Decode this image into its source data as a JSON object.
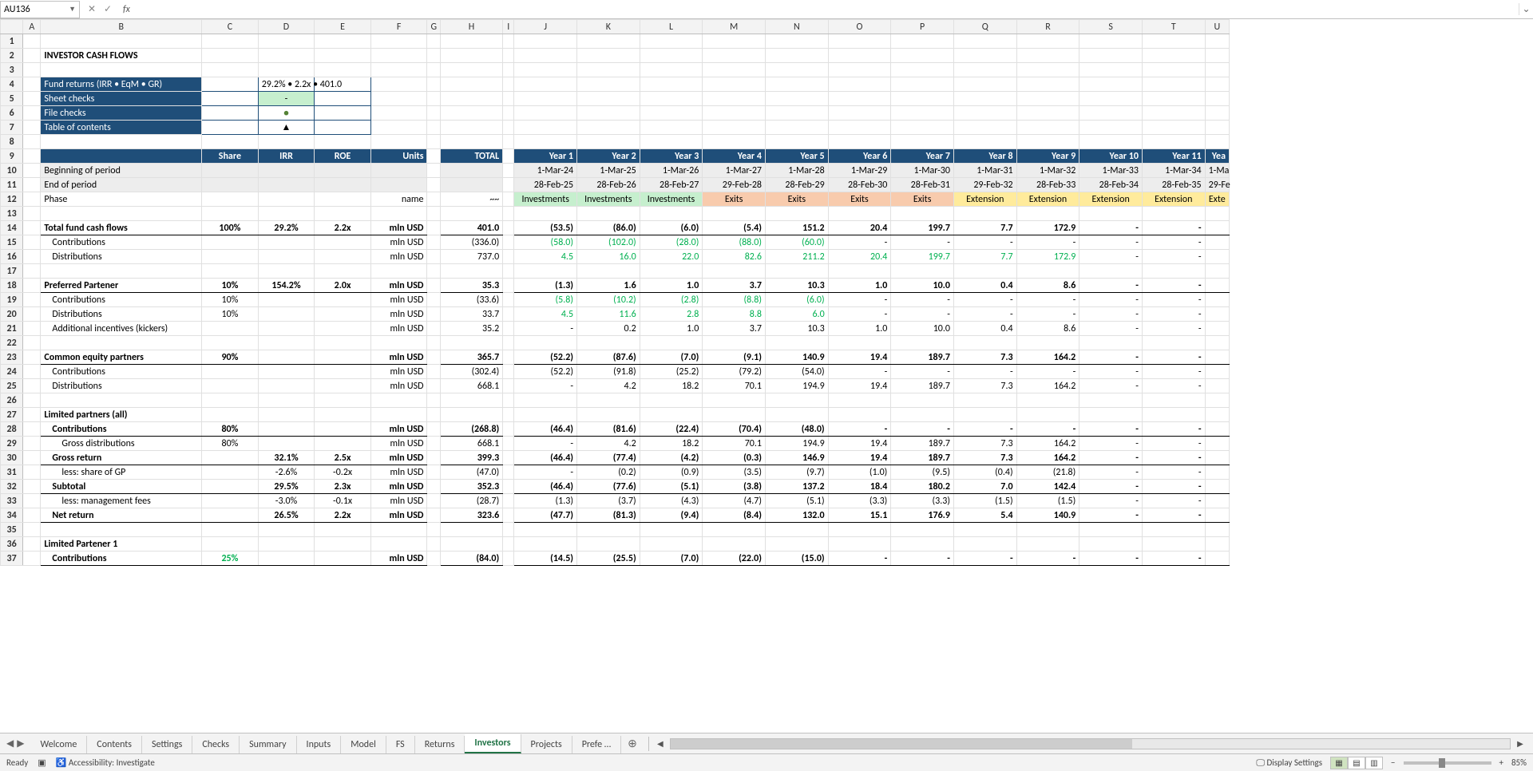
{
  "formula_bar": {
    "name_box": "AU136",
    "fx": "fx",
    "formula": ""
  },
  "columns": [
    "A",
    "B",
    "C",
    "D",
    "E",
    "F",
    "G",
    "H",
    "I",
    "J",
    "K",
    "L",
    "M",
    "N",
    "O",
    "P",
    "Q",
    "R",
    "S",
    "T",
    "U"
  ],
  "title": "INVESTOR CASH FLOWS",
  "info_box": {
    "rows": [
      {
        "label": "Fund returns (IRR • EqM • GR)",
        "val": "29.2% • 2.2x • 401.0"
      },
      {
        "label": "Sheet checks",
        "val": "-"
      },
      {
        "label": "File checks",
        "val": "●"
      },
      {
        "label": "Table of contents",
        "val": "▲"
      }
    ]
  },
  "header_row": {
    "share": "Share",
    "irr": "IRR",
    "roe": "ROE",
    "units": "Units",
    "total": "TOTAL",
    "years": [
      "Year 1",
      "Year 2",
      "Year 3",
      "Year 4",
      "Year 5",
      "Year 6",
      "Year 7",
      "Year 8",
      "Year 9",
      "Year 10",
      "Year 11",
      "Yea"
    ]
  },
  "period_rows": {
    "bop_label": "Beginning of period",
    "eop_label": "End of period",
    "bop": [
      "1-Mar-24",
      "1-Mar-25",
      "1-Mar-26",
      "1-Mar-27",
      "1-Mar-28",
      "1-Mar-29",
      "1-Mar-30",
      "1-Mar-31",
      "1-Mar-32",
      "1-Mar-33",
      "1-Mar-34",
      "1-Ma"
    ],
    "eop": [
      "28-Feb-25",
      "28-Feb-26",
      "28-Feb-27",
      "29-Feb-28",
      "28-Feb-29",
      "28-Feb-30",
      "28-Feb-31",
      "29-Feb-32",
      "28-Feb-33",
      "28-Feb-34",
      "28-Feb-35",
      "29-Fe"
    ]
  },
  "phase_row": {
    "label": "Phase",
    "units": "name",
    "total": "~~",
    "phases": [
      "Investments",
      "Investments",
      "Investments",
      "Exits",
      "Exits",
      "Exits",
      "Exits",
      "Extension",
      "Extension",
      "Extension",
      "Extension",
      "Exte"
    ],
    "phase_class": [
      "phase-inv",
      "phase-inv",
      "phase-inv",
      "phase-exit",
      "phase-exit",
      "phase-exit",
      "phase-exit",
      "phase-ext",
      "phase-ext",
      "phase-ext",
      "phase-ext",
      "phase-ext"
    ]
  },
  "sections": [
    {
      "row": 14,
      "b": "Total fund cash flows",
      "c": "100%",
      "d": "29.2%",
      "e": "2.2x",
      "f": "mln USD",
      "h": "401.0",
      "bold": true,
      "bb": true,
      "y": [
        "(53.5)",
        "(86.0)",
        "(6.0)",
        "(5.4)",
        "151.2",
        "20.4",
        "199.7",
        "7.7",
        "172.9",
        "-",
        "-",
        ""
      ]
    },
    {
      "row": 15,
      "b": "Contributions",
      "indent": 1,
      "f": "mln USD",
      "h": "(336.0)",
      "y": [
        "(58.0)",
        "(102.0)",
        "(28.0)",
        "(88.0)",
        "(60.0)",
        "-",
        "-",
        "-",
        "-",
        "-",
        "-",
        ""
      ],
      "green": true
    },
    {
      "row": 16,
      "b": "Distributions",
      "indent": 1,
      "f": "mln USD",
      "h": "737.0",
      "y": [
        "4.5",
        "16.0",
        "22.0",
        "82.6",
        "211.2",
        "20.4",
        "199.7",
        "7.7",
        "172.9",
        "-",
        "-",
        ""
      ],
      "green": true
    },
    {
      "row": 17,
      "blank": true
    },
    {
      "row": 18,
      "b": "Preferred Partener",
      "c": "10%",
      "d": "154.2%",
      "e": "2.0x",
      "f": "mln USD",
      "h": "35.3",
      "bold": true,
      "bb": true,
      "y": [
        "(1.3)",
        "1.6",
        "1.0",
        "3.7",
        "10.3",
        "1.0",
        "10.0",
        "0.4",
        "8.6",
        "-",
        "-",
        ""
      ]
    },
    {
      "row": 19,
      "b": "Contributions",
      "indent": 1,
      "c": "10%",
      "f": "mln USD",
      "h": "(33.6)",
      "y": [
        "(5.8)",
        "(10.2)",
        "(2.8)",
        "(8.8)",
        "(6.0)",
        "-",
        "-",
        "-",
        "-",
        "-",
        "-",
        ""
      ],
      "green": true
    },
    {
      "row": 20,
      "b": "Distributions",
      "indent": 1,
      "c": "10%",
      "f": "mln USD",
      "h": "33.7",
      "y": [
        "4.5",
        "11.6",
        "2.8",
        "8.8",
        "6.0",
        "-",
        "-",
        "-",
        "-",
        "-",
        "-",
        ""
      ],
      "green": true
    },
    {
      "row": 21,
      "b": "Additional incentives (kickers)",
      "indent": 1,
      "f": "mln USD",
      "h": "35.2",
      "y": [
        "-",
        "0.2",
        "1.0",
        "3.7",
        "10.3",
        "1.0",
        "10.0",
        "0.4",
        "8.6",
        "-",
        "-",
        ""
      ]
    },
    {
      "row": 22,
      "blank": true
    },
    {
      "row": 23,
      "b": "Common equity partners",
      "c": "90%",
      "f": "mln USD",
      "h": "365.7",
      "bold": true,
      "bb": true,
      "y": [
        "(52.2)",
        "(87.6)",
        "(7.0)",
        "(9.1)",
        "140.9",
        "19.4",
        "189.7",
        "7.3",
        "164.2",
        "-",
        "-",
        ""
      ]
    },
    {
      "row": 24,
      "b": "Contributions",
      "indent": 1,
      "f": "mln USD",
      "h": "(302.4)",
      "y": [
        "(52.2)",
        "(91.8)",
        "(25.2)",
        "(79.2)",
        "(54.0)",
        "-",
        "-",
        "-",
        "-",
        "-",
        "-",
        ""
      ]
    },
    {
      "row": 25,
      "b": "Distributions",
      "indent": 1,
      "f": "mln USD",
      "h": "668.1",
      "y": [
        "-",
        "4.2",
        "18.2",
        "70.1",
        "194.9",
        "19.4",
        "189.7",
        "7.3",
        "164.2",
        "-",
        "-",
        ""
      ]
    },
    {
      "row": 26,
      "blank": true
    },
    {
      "row": 27,
      "b": "Limited partners (all)",
      "bold": true
    },
    {
      "row": 28,
      "b": "Contributions",
      "indent": 1,
      "c": "80%",
      "f": "mln USD",
      "h": "(268.8)",
      "bold": true,
      "bb": true,
      "y": [
        "(46.4)",
        "(81.6)",
        "(22.4)",
        "(70.4)",
        "(48.0)",
        "-",
        "-",
        "-",
        "-",
        "-",
        "-",
        ""
      ]
    },
    {
      "row": 29,
      "b": "Gross distributions",
      "indent": 2,
      "c": "80%",
      "f": "mln USD",
      "h": "668.1",
      "y": [
        "-",
        "4.2",
        "18.2",
        "70.1",
        "194.9",
        "19.4",
        "189.7",
        "7.3",
        "164.2",
        "-",
        "-",
        ""
      ]
    },
    {
      "row": 30,
      "b": "Gross return",
      "indent": 1,
      "d": "32.1%",
      "e": "2.5x",
      "f": "mln USD",
      "h": "399.3",
      "bold": true,
      "bb": true,
      "y": [
        "(46.4)",
        "(77.4)",
        "(4.2)",
        "(0.3)",
        "146.9",
        "19.4",
        "189.7",
        "7.3",
        "164.2",
        "-",
        "-",
        ""
      ]
    },
    {
      "row": 31,
      "b": "less: share of GP",
      "indent": 2,
      "d": "-2.6%",
      "e": "-0.2x",
      "f": "mln USD",
      "h": "(47.0)",
      "y": [
        "-",
        "(0.2)",
        "(0.9)",
        "(3.5)",
        "(9.7)",
        "(1.0)",
        "(9.5)",
        "(0.4)",
        "(21.8)",
        "-",
        "-",
        ""
      ]
    },
    {
      "row": 32,
      "b": "Subtotal",
      "indent": 1,
      "d": "29.5%",
      "e": "2.3x",
      "f": "mln USD",
      "h": "352.3",
      "bold": true,
      "bb": true,
      "y": [
        "(46.4)",
        "(77.6)",
        "(5.1)",
        "(3.8)",
        "137.2",
        "18.4",
        "180.2",
        "7.0",
        "142.4",
        "-",
        "-",
        ""
      ]
    },
    {
      "row": 33,
      "b": "less: management fees",
      "indent": 2,
      "d": "-3.0%",
      "e": "-0.1x",
      "f": "mln USD",
      "h": "(28.7)",
      "y": [
        "(1.3)",
        "(3.7)",
        "(4.3)",
        "(4.7)",
        "(5.1)",
        "(3.3)",
        "(3.3)",
        "(1.5)",
        "(1.5)",
        "-",
        "-",
        ""
      ]
    },
    {
      "row": 34,
      "b": "Net return",
      "indent": 1,
      "d": "26.5%",
      "e": "2.2x",
      "f": "mln USD",
      "h": "323.6",
      "bold": true,
      "bb": true,
      "y": [
        "(47.7)",
        "(81.3)",
        "(9.4)",
        "(8.4)",
        "132.0",
        "15.1",
        "176.9",
        "5.4",
        "140.9",
        "-",
        "-",
        ""
      ]
    },
    {
      "row": 35,
      "blank": true
    },
    {
      "row": 36,
      "b": "Limited Partener 1",
      "bold": true
    },
    {
      "row": 37,
      "b": "Contributions",
      "indent": 1,
      "c": "25%",
      "c_green": true,
      "f": "mln USD",
      "h": "(84.0)",
      "bold": true,
      "bb": true,
      "y": [
        "(14.5)",
        "(25.5)",
        "(7.0)",
        "(22.0)",
        "(15.0)",
        "-",
        "-",
        "-",
        "-",
        "-",
        "-",
        ""
      ]
    }
  ],
  "tabs": {
    "items": [
      "Welcome",
      "Contents",
      "Settings",
      "Checks",
      "Summary",
      "Inputs",
      "Model",
      "FS",
      "Returns",
      "Investors",
      "Projects",
      "Prefe …"
    ],
    "active": "Investors"
  },
  "statusbar": {
    "ready": "Ready",
    "accessibility": "Accessibility: Investigate",
    "display_settings": "Display Settings",
    "zoom": "85%"
  },
  "colors": {
    "header_blue": "#1f4e79",
    "phase_inv": "#c6efce",
    "phase_exit": "#f8cbad",
    "phase_ext": "#ffeb9c",
    "gridline": "#e0e0e0",
    "excel_green": "#217346"
  }
}
